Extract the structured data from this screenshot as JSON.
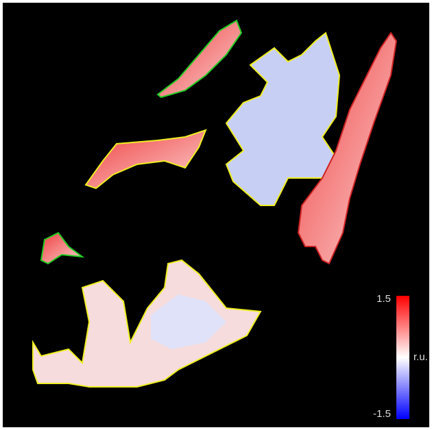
{
  "colorbar": {
    "max_label": "1.5",
    "min_label": "-1.5",
    "unit": "r.u."
  }
}
